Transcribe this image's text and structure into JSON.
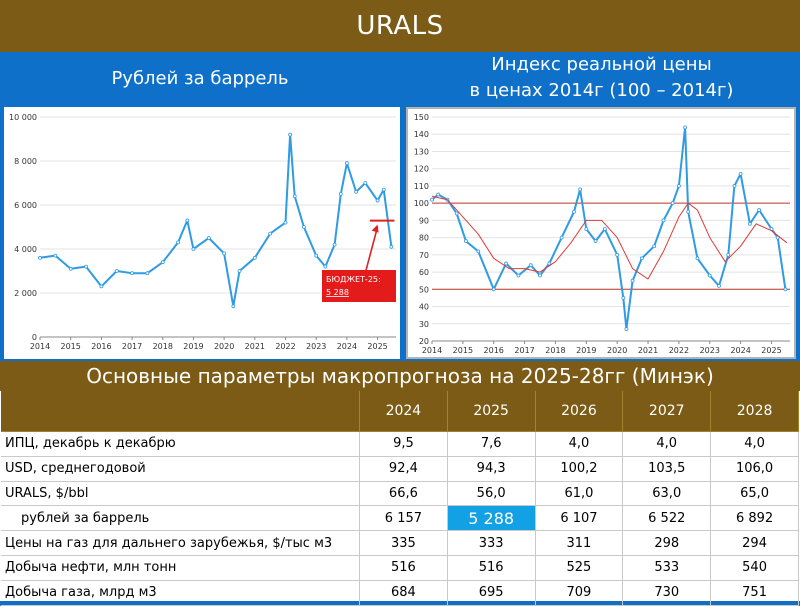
{
  "title": "URALS",
  "left_chart_title": "Рублей за баррель",
  "right_chart_title_line1": "Индекс реальной цены",
  "right_chart_title_line2": "в ценах 2014г (100 – 2014г)",
  "section_title": "Основные параметры макропрогноза на 2025-28гг (Минэк)",
  "colors": {
    "brown": "#7b5b16",
    "blue": "#0e70c8",
    "line": "#2f9be3",
    "red": "#e03a3a",
    "highlight": "#12a1e4"
  },
  "chart_data": [
    {
      "type": "line",
      "ylim": [
        0,
        10000
      ],
      "yticks": [
        "0",
        "2 000",
        "4 000",
        "6 000",
        "8 000",
        "10 000"
      ],
      "xticks": [
        "2014",
        "2015",
        "2016",
        "2017",
        "2018",
        "2019",
        "2020",
        "2021",
        "2022",
        "2023",
        "2024",
        "2025"
      ],
      "series": [
        {
          "x": [
            2014.0,
            2014.5,
            2015.0,
            2015.5,
            2016.0,
            2016.5,
            2017.0,
            2017.5,
            2018.0,
            2018.5,
            2018.8,
            2019.0,
            2019.5,
            2020.0,
            2020.3,
            2020.5,
            2021.0,
            2021.5,
            2022.0,
            2022.15,
            2022.3,
            2022.6,
            2023.0,
            2023.3,
            2023.6,
            2023.8,
            2024.0,
            2024.3,
            2024.6,
            2025.0,
            2025.2,
            2025.45
          ],
          "y": [
            3600,
            3700,
            3100,
            3200,
            2300,
            3000,
            2900,
            2900,
            3400,
            4300,
            5300,
            4000,
            4500,
            3800,
            1400,
            3000,
            3600,
            4700,
            5200,
            9200,
            6400,
            5000,
            3700,
            3200,
            4200,
            6500,
            7900,
            6600,
            7000,
            6200,
            6700,
            4100
          ]
        }
      ],
      "budget": {
        "label": "БЮДЖЕТ-25:",
        "value": "5 288",
        "y": 5288
      }
    },
    {
      "type": "line",
      "ylim": [
        20,
        150
      ],
      "yticks": [
        "20",
        "30",
        "40",
        "50",
        "60",
        "70",
        "80",
        "90",
        "100",
        "110",
        "120",
        "130",
        "140",
        "150"
      ],
      "xticks": [
        "2014",
        "2015",
        "2016",
        "2017",
        "2018",
        "2019",
        "2020",
        "2021",
        "2022",
        "2023",
        "2024",
        "2025"
      ],
      "hlines": [
        100,
        50
      ],
      "series": [
        {
          "x": [
            2014.0,
            2014.2,
            2014.5,
            2014.8,
            2015.1,
            2015.5,
            2016.0,
            2016.4,
            2016.8,
            2017.2,
            2017.5,
            2017.8,
            2018.2,
            2018.6,
            2018.8,
            2019.0,
            2019.3,
            2019.6,
            2020.0,
            2020.2,
            2020.3,
            2020.5,
            2020.8,
            2021.2,
            2021.5,
            2021.8,
            2022.0,
            2022.2,
            2022.3,
            2022.6,
            2023.0,
            2023.3,
            2023.6,
            2023.8,
            2024.0,
            2024.3,
            2024.6,
            2025.0,
            2025.2,
            2025.45
          ],
          "y": [
            102,
            105,
            102,
            94,
            78,
            72,
            50,
            65,
            58,
            64,
            58,
            65,
            80,
            95,
            108,
            85,
            78,
            85,
            70,
            45,
            27,
            55,
            68,
            75,
            90,
            100,
            110,
            144,
            95,
            68,
            58,
            52,
            70,
            110,
            117,
            88,
            96,
            85,
            80,
            50
          ]
        },
        {
          "x": [
            2014.0,
            2014.5,
            2015.0,
            2015.5,
            2016.0,
            2016.5,
            2017.0,
            2017.5,
            2018.0,
            2018.5,
            2019.0,
            2019.5,
            2020.0,
            2020.5,
            2021.0,
            2021.5,
            2022.0,
            2022.3,
            2022.6,
            2023.0,
            2023.5,
            2024.0,
            2024.5,
            2025.0,
            2025.5
          ],
          "y": [
            104,
            102,
            92,
            82,
            68,
            62,
            62,
            60,
            66,
            77,
            90,
            90,
            80,
            62,
            56,
            72,
            92,
            100,
            96,
            80,
            66,
            75,
            88,
            84,
            77
          ]
        }
      ]
    }
  ],
  "table": {
    "headers": [
      "",
      "2024",
      "2025",
      "2026",
      "2027",
      "2028"
    ],
    "rows": [
      {
        "label": "ИПЦ, декабрь к декабрю",
        "values": [
          "9,5",
          "7,6",
          "4,0",
          "4,0",
          "4,0"
        ]
      },
      {
        "label": "USD, среднегодовой",
        "values": [
          "92,4",
          "94,3",
          "100,2",
          "103,5",
          "106,0"
        ]
      },
      {
        "label": "URALS, $/bbl",
        "values": [
          "66,6",
          "56,0",
          "61,0",
          "63,0",
          "65,0"
        ]
      },
      {
        "label": "рублей за баррель",
        "values": [
          "6 157",
          "5 288",
          "6 107",
          "6 522",
          "6 892"
        ],
        "indent": true,
        "highlight_col": 1
      },
      {
        "label": "Цены на газ для дальнего зарубежья, $/тыс м3",
        "values": [
          "335",
          "333",
          "311",
          "298",
          "294"
        ]
      },
      {
        "label": "Добыча нефти, млн тонн",
        "values": [
          "516",
          "516",
          "525",
          "533",
          "540"
        ]
      },
      {
        "label": "Добыча газа, млрд м3",
        "values": [
          "684",
          "695",
          "709",
          "730",
          "751"
        ]
      }
    ]
  }
}
